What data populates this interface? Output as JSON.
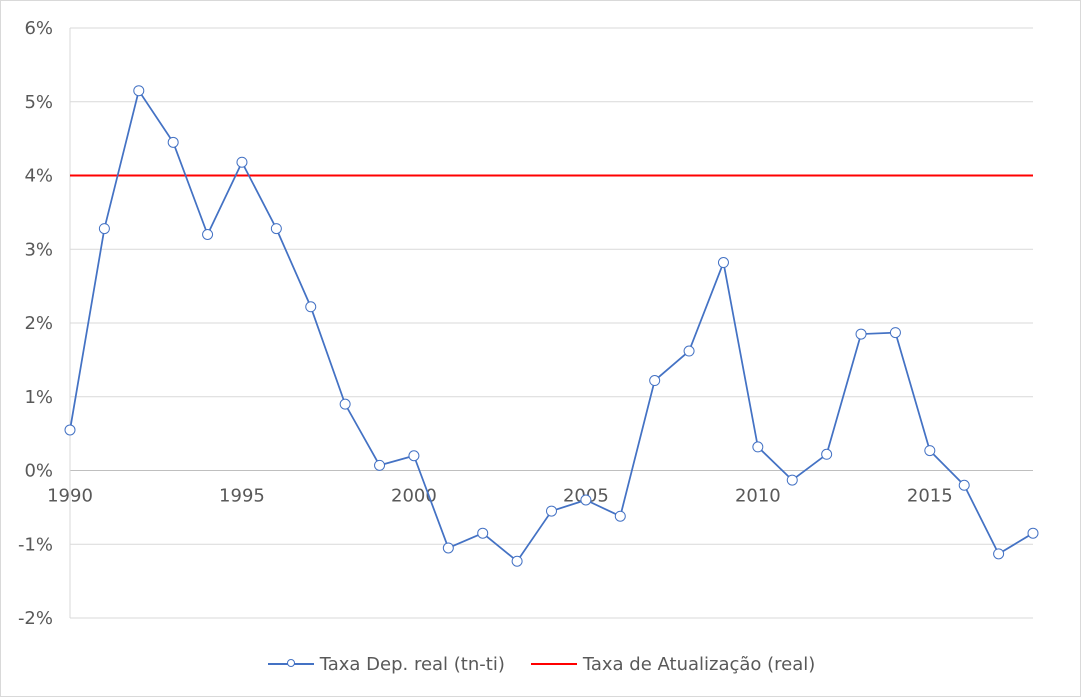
{
  "chart_data": {
    "type": "line",
    "title": "",
    "xlabel": "",
    "ylabel": "",
    "x": [
      1990,
      1991,
      1992,
      1993,
      1994,
      1995,
      1996,
      1997,
      1998,
      1999,
      2000,
      2001,
      2002,
      2003,
      2004,
      2005,
      2006,
      2007,
      2008,
      2009,
      2010,
      2011,
      2012,
      2013,
      2014,
      2015,
      2016,
      2017,
      2018
    ],
    "xticks": [
      1990,
      1995,
      2000,
      2005,
      2010,
      2015
    ],
    "xtick_labels": [
      "1990",
      "1995",
      "2000",
      "2005",
      "2010",
      "2015"
    ],
    "xlim": [
      1990,
      2018
    ],
    "ylim": [
      -2,
      6
    ],
    "yticks": [
      -2,
      -1,
      0,
      1,
      2,
      3,
      4,
      5,
      6
    ],
    "ytick_labels": [
      "-2%",
      "-1%",
      "0%",
      "1%",
      "2%",
      "3%",
      "4%",
      "5%",
      "6%"
    ],
    "grid": true,
    "legend_position": "bottom",
    "series": [
      {
        "name": "Taxa Dep. real (tn-ti)",
        "color": "#4472c4",
        "marker": "circle-open",
        "values": [
          0.55,
          3.28,
          5.15,
          4.45,
          3.2,
          4.18,
          3.28,
          2.22,
          0.9,
          0.07,
          0.2,
          -1.05,
          -0.85,
          -1.23,
          -0.55,
          -0.4,
          -0.62,
          1.22,
          1.62,
          2.82,
          0.32,
          -0.13,
          0.22,
          1.85,
          1.87,
          0.27,
          -0.2,
          -1.13,
          -0.85
        ]
      },
      {
        "name": "Taxa de Atualização (real)",
        "color": "#ff0000",
        "marker": "none",
        "values": [
          4,
          4,
          4,
          4,
          4,
          4,
          4,
          4,
          4,
          4,
          4,
          4,
          4,
          4,
          4,
          4,
          4,
          4,
          4,
          4,
          4,
          4,
          4,
          4,
          4,
          4,
          4,
          4,
          4
        ]
      }
    ]
  }
}
